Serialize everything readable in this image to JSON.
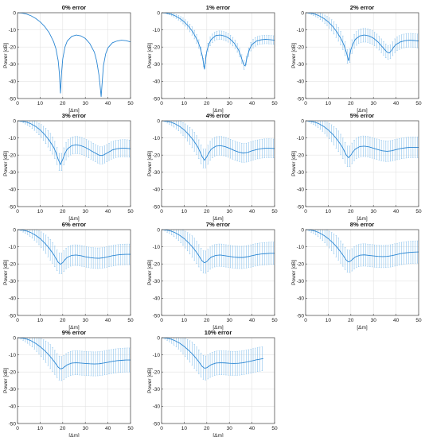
{
  "chart_data": [
    {
      "type": "line",
      "title": "0% error",
      "xlabel": "[Δm]",
      "ylabel": "Power [dB]",
      "xlim": [
        0,
        50
      ],
      "ylim": [
        -50,
        0
      ],
      "x_ticks": [
        "0",
        "10",
        "20",
        "30",
        "40",
        "50"
      ],
      "y_ticks": [
        "0",
        "-10",
        "-20",
        "-30",
        "-40",
        "-50"
      ],
      "grid": true,
      "series": [
        {
          "x": [
            0,
            2,
            4,
            6,
            8,
            10,
            12,
            14,
            16,
            17,
            18,
            18.5,
            19,
            19.5,
            20,
            21,
            22,
            24,
            26,
            28,
            30,
            32,
            34,
            35,
            36,
            36.5,
            37,
            37.5,
            38,
            39,
            40,
            42,
            44,
            46,
            48,
            50
          ],
          "mean": [
            0,
            -0.2,
            -0.8,
            -1.8,
            -3.3,
            -5.3,
            -8,
            -11.6,
            -17,
            -21,
            -28,
            -35,
            -47,
            -35,
            -27,
            -20,
            -16.5,
            -13.8,
            -13,
            -13.5,
            -15,
            -18,
            -23,
            -28,
            -36,
            -42,
            -49,
            -40,
            -31,
            -24,
            -20.5,
            -17.5,
            -16.5,
            -16,
            -16.3,
            -17
          ],
          "err": 0
        }
      ]
    },
    {
      "type": "line",
      "title": "1% error",
      "xlabel": "[Δm]",
      "ylabel": "Power [dB]",
      "xlim": [
        0,
        50
      ],
      "ylim": [
        -50,
        0
      ],
      "x_ticks": [
        "0",
        "10",
        "20",
        "30",
        "40",
        "50"
      ],
      "y_ticks": [
        "0",
        "-10",
        "-20",
        "-30",
        "-40",
        "-50"
      ],
      "grid": true,
      "series": [
        {
          "x": [
            0,
            2,
            4,
            6,
            8,
            10,
            12,
            14,
            16,
            17,
            18,
            18.5,
            19,
            19.5,
            20,
            21,
            22,
            24,
            26,
            28,
            30,
            32,
            34,
            35,
            36,
            36.5,
            37,
            37.5,
            38,
            39,
            40,
            42,
            44,
            46,
            48,
            50
          ],
          "mean": [
            0,
            -0.2,
            -0.8,
            -1.8,
            -3.3,
            -5.3,
            -8,
            -11.5,
            -16.5,
            -20,
            -25,
            -29,
            -33,
            -27,
            -22.5,
            -18,
            -15.5,
            -13.3,
            -13,
            -13.6,
            -15,
            -17.5,
            -21.5,
            -25,
            -29,
            -30.5,
            -31,
            -28,
            -25,
            -21,
            -18.5,
            -16.5,
            -15.8,
            -15.5,
            -15.7,
            -16
          ],
          "err": 2.5
        }
      ]
    },
    {
      "type": "line",
      "title": "2% error",
      "xlabel": "[Δm]",
      "ylabel": "Power [dB]",
      "xlim": [
        0,
        50
      ],
      "ylim": [
        -50,
        0
      ],
      "x_ticks": [
        "0",
        "10",
        "20",
        "30",
        "40",
        "50"
      ],
      "y_ticks": [
        "0",
        "-10",
        "-20",
        "-30",
        "-40",
        "-50"
      ],
      "grid": true,
      "series": [
        {
          "x": [
            0,
            2,
            4,
            6,
            8,
            10,
            12,
            14,
            16,
            17,
            18,
            18.5,
            19,
            19.5,
            20,
            21,
            22,
            24,
            26,
            28,
            30,
            32,
            34,
            35,
            36,
            37,
            38,
            39,
            40,
            42,
            44,
            46,
            48,
            50
          ],
          "mean": [
            0,
            -0.2,
            -0.8,
            -1.8,
            -3.3,
            -5.3,
            -8,
            -11.5,
            -16,
            -19,
            -23,
            -25.5,
            -28,
            -25,
            -21.5,
            -18,
            -15.5,
            -13.5,
            -13,
            -13.5,
            -14.8,
            -17,
            -20,
            -21.5,
            -23,
            -23.5,
            -22,
            -20,
            -18.5,
            -17,
            -16.3,
            -16,
            -16.2,
            -16.5
          ],
          "err": 4
        }
      ]
    },
    {
      "type": "line",
      "title": "3% error",
      "xlabel": "[Δm]",
      "ylabel": "Power [dB]",
      "xlim": [
        0,
        50
      ],
      "ylim": [
        -50,
        0
      ],
      "x_ticks": [
        "0",
        "10",
        "20",
        "30",
        "40",
        "50"
      ],
      "y_ticks": [
        "0",
        "-10",
        "-20",
        "-30",
        "-40",
        "-50"
      ],
      "grid": true,
      "series": [
        {
          "x": [
            0,
            2,
            4,
            6,
            8,
            10,
            12,
            14,
            16,
            17,
            18,
            19,
            20,
            21,
            22,
            24,
            26,
            28,
            30,
            32,
            34,
            36,
            37,
            38,
            40,
            42,
            44,
            46,
            48,
            50
          ],
          "mean": [
            0,
            -0.2,
            -0.8,
            -1.8,
            -3.3,
            -5.3,
            -8,
            -11.3,
            -15.5,
            -18.5,
            -22.5,
            -25.5,
            -22.5,
            -19,
            -16.5,
            -14.5,
            -14,
            -14.5,
            -15.5,
            -17,
            -18.5,
            -20,
            -20.3,
            -20,
            -18.5,
            -17,
            -16.3,
            -16,
            -16,
            -16.3
          ],
          "err": 5
        }
      ]
    },
    {
      "type": "line",
      "title": "4% error",
      "xlabel": "[Δm]",
      "ylabel": "Power [dB]",
      "xlim": [
        0,
        50
      ],
      "ylim": [
        -50,
        0
      ],
      "x_ticks": [
        "0",
        "10",
        "20",
        "30",
        "40",
        "50"
      ],
      "y_ticks": [
        "0",
        "-10",
        "-20",
        "-30",
        "-40",
        "-50"
      ],
      "grid": true,
      "series": [
        {
          "x": [
            0,
            2,
            4,
            6,
            8,
            10,
            12,
            14,
            16,
            17,
            18,
            19,
            20,
            21,
            22,
            24,
            26,
            28,
            30,
            32,
            34,
            36,
            38,
            40,
            42,
            44,
            46,
            48,
            50
          ],
          "mean": [
            0,
            -0.2,
            -0.8,
            -1.8,
            -3.3,
            -5.3,
            -8,
            -11.2,
            -15.2,
            -18,
            -21,
            -23,
            -21,
            -18.5,
            -16.5,
            -14.8,
            -14.5,
            -15,
            -16,
            -17.2,
            -18.2,
            -18.8,
            -18.5,
            -17.5,
            -16.8,
            -16.3,
            -16,
            -16,
            -16.2
          ],
          "err": 5.5
        }
      ]
    },
    {
      "type": "line",
      "title": "5% error",
      "xlabel": "[Δm]",
      "ylabel": "Power [dB]",
      "xlim": [
        0,
        50
      ],
      "ylim": [
        -50,
        0
      ],
      "x_ticks": [
        "0",
        "10",
        "20",
        "30",
        "40",
        "50"
      ],
      "y_ticks": [
        "0",
        "-10",
        "-20",
        "-30",
        "-40",
        "-50"
      ],
      "grid": true,
      "series": [
        {
          "x": [
            0,
            2,
            4,
            6,
            8,
            10,
            12,
            14,
            16,
            17,
            18,
            19,
            20,
            21,
            22,
            24,
            26,
            28,
            30,
            32,
            34,
            36,
            38,
            40,
            42,
            44,
            46,
            48,
            50
          ],
          "mean": [
            0,
            -0.2,
            -0.8,
            -1.8,
            -3.3,
            -5.3,
            -7.9,
            -11,
            -14.8,
            -17.3,
            -20,
            -21.5,
            -20,
            -18,
            -16.5,
            -15,
            -14.8,
            -15.2,
            -16,
            -16.8,
            -17.5,
            -17.8,
            -17.5,
            -16.8,
            -16.2,
            -15.8,
            -15.5,
            -15.5,
            -15.5
          ],
          "err": 6
        }
      ]
    },
    {
      "type": "line",
      "title": "6% error",
      "xlabel": "[Δm]",
      "ylabel": "Power [dB]",
      "xlim": [
        0,
        50
      ],
      "ylim": [
        -50,
        0
      ],
      "x_ticks": [
        "0",
        "10",
        "20",
        "30",
        "40",
        "50"
      ],
      "y_ticks": [
        "0",
        "-10",
        "-20",
        "-30",
        "-40",
        "-50"
      ],
      "grid": true,
      "series": [
        {
          "x": [
            0,
            2,
            4,
            6,
            8,
            10,
            12,
            14,
            16,
            17,
            18,
            19,
            20,
            21,
            22,
            24,
            26,
            28,
            30,
            32,
            34,
            36,
            38,
            40,
            42,
            44,
            46,
            48,
            50
          ],
          "mean": [
            0,
            -0.2,
            -0.8,
            -1.8,
            -3.3,
            -5.2,
            -7.8,
            -10.8,
            -14.5,
            -16.8,
            -19,
            -20.2,
            -19.2,
            -17.5,
            -16.2,
            -15,
            -14.8,
            -15.2,
            -15.8,
            -16.3,
            -16.6,
            -16.7,
            -16.4,
            -15.8,
            -15.2,
            -14.8,
            -14.5,
            -14.4,
            -14.4
          ],
          "err": 6
        }
      ]
    },
    {
      "type": "line",
      "title": "7% error",
      "xlabel": "[Δm]",
      "ylabel": "Power [dB]",
      "xlim": [
        0,
        50
      ],
      "ylim": [
        -50,
        0
      ],
      "x_ticks": [
        "0",
        "10",
        "20",
        "30",
        "40",
        "50"
      ],
      "y_ticks": [
        "0",
        "-10",
        "-20",
        "-30",
        "-40",
        "-50"
      ],
      "grid": true,
      "series": [
        {
          "x": [
            0,
            2,
            4,
            6,
            8,
            10,
            12,
            14,
            16,
            17,
            18,
            19,
            20,
            21,
            22,
            24,
            26,
            28,
            30,
            32,
            34,
            36,
            38,
            40,
            42,
            44,
            46,
            48,
            50
          ],
          "mean": [
            0,
            -0.2,
            -0.8,
            -1.8,
            -3.3,
            -5.2,
            -7.7,
            -10.6,
            -14.2,
            -16.3,
            -18.3,
            -19.3,
            -18.6,
            -17.2,
            -16,
            -15,
            -14.8,
            -15.2,
            -15.6,
            -16,
            -16.2,
            -16.2,
            -15.8,
            -15.2,
            -14.6,
            -14.2,
            -14,
            -13.8,
            -13.8
          ],
          "err": 6.5
        }
      ]
    },
    {
      "type": "line",
      "title": "8% error",
      "xlabel": "[Δm]",
      "ylabel": "Power [dB]",
      "xlim": [
        0,
        50
      ],
      "ylim": [
        -50,
        0
      ],
      "x_ticks": [
        "0",
        "10",
        "20",
        "30",
        "40",
        "50"
      ],
      "y_ticks": [
        "0",
        "-10",
        "-20",
        "-30",
        "-40",
        "-50"
      ],
      "grid": true,
      "series": [
        {
          "x": [
            0,
            2,
            4,
            6,
            8,
            10,
            12,
            14,
            16,
            17,
            18,
            19,
            20,
            21,
            22,
            24,
            26,
            28,
            30,
            32,
            34,
            36,
            38,
            40,
            42,
            44,
            46,
            48,
            50
          ],
          "mean": [
            0,
            -0.2,
            -0.8,
            -1.8,
            -3.3,
            -5.2,
            -7.6,
            -10.4,
            -13.9,
            -15.8,
            -17.8,
            -18.8,
            -18.2,
            -17,
            -15.9,
            -14.9,
            -14.7,
            -15,
            -15.3,
            -15.6,
            -15.7,
            -15.6,
            -15.2,
            -14.6,
            -14,
            -13.6,
            -13.3,
            -13.1,
            -13
          ],
          "err": 6.5
        }
      ]
    },
    {
      "type": "line",
      "title": "9% error",
      "xlabel": "[Δm]",
      "ylabel": "Power [dB]",
      "xlim": [
        0,
        50
      ],
      "ylim": [
        -50,
        0
      ],
      "x_ticks": [
        "0",
        "10",
        "20",
        "30",
        "40",
        "50"
      ],
      "y_ticks": [
        "0",
        "-10",
        "-20",
        "-30",
        "-40",
        "-50"
      ],
      "grid": true,
      "series": [
        {
          "x": [
            0,
            2,
            4,
            6,
            8,
            10,
            12,
            14,
            16,
            17,
            18,
            19,
            20,
            21,
            22,
            24,
            26,
            28,
            30,
            32,
            34,
            36,
            38,
            40,
            42,
            44,
            46,
            48,
            50
          ],
          "mean": [
            0,
            -0.2,
            -0.8,
            -1.8,
            -3.3,
            -5.2,
            -7.5,
            -10.2,
            -13.5,
            -15.3,
            -17.2,
            -18.2,
            -17.8,
            -16.8,
            -15.8,
            -14.8,
            -14.6,
            -14.8,
            -15,
            -15.2,
            -15.3,
            -15.2,
            -14.8,
            -14.3,
            -13.8,
            -13.4,
            -13.2,
            -13,
            -13
          ],
          "err": 7
        }
      ]
    },
    {
      "type": "line",
      "title": "10% error",
      "xlabel": "[Δm]",
      "ylabel": "Power [dB]",
      "xlim": [
        0,
        50
      ],
      "ylim": [
        -50,
        0
      ],
      "x_ticks": [
        "0",
        "10",
        "20",
        "30",
        "40",
        "50"
      ],
      "y_ticks": [
        "0",
        "-10",
        "-20",
        "-30",
        "-40",
        "-50"
      ],
      "grid": true,
      "series": [
        {
          "x": [
            0,
            2,
            4,
            6,
            8,
            10,
            12,
            14,
            16,
            17,
            18,
            19,
            20,
            21,
            22,
            24,
            26,
            28,
            30,
            32,
            34,
            36,
            38,
            40,
            42,
            44,
            45
          ],
          "mean": [
            0,
            -0.2,
            -0.8,
            -1.8,
            -3.2,
            -5.1,
            -7.4,
            -10,
            -13.2,
            -15,
            -16.8,
            -17.8,
            -17.5,
            -16.6,
            -15.7,
            -14.8,
            -14.6,
            -14.7,
            -14.9,
            -15,
            -14.9,
            -14.6,
            -14.1,
            -13.5,
            -12.9,
            -12.4,
            -12.2
          ],
          "err": 7
        }
      ]
    }
  ],
  "colors": {
    "line": "#2a86d3",
    "errorbar": "#8cc3ec",
    "grid": "#e3e3e3",
    "axis": "#444444"
  }
}
